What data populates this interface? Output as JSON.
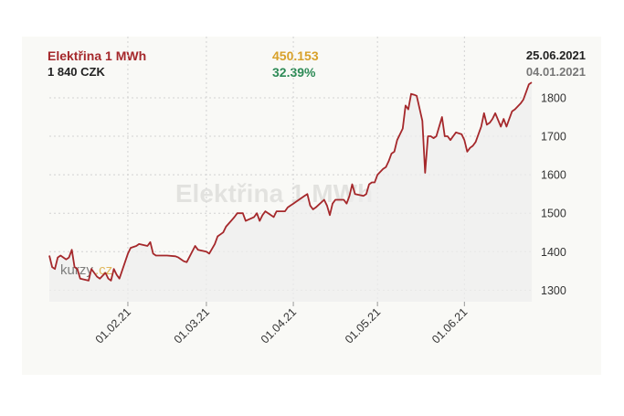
{
  "header": {
    "title": "Elektřina 1 MWh",
    "price": "1 840 CZK",
    "change_abs": "450.153",
    "change_pct": "32.39%",
    "date_end": "25.06.2021",
    "date_start": "04.01.2021"
  },
  "watermark": {
    "text": "Elektřina 1 MWh",
    "logo_text_a": "kurzy",
    "logo_text_b": ".cz"
  },
  "colors": {
    "title": "#a5282b",
    "line": "#a5282b",
    "change_abs": "#d8a12a",
    "change_pct": "#2e8b57",
    "text_dark": "#222222",
    "text_grey": "#777777",
    "fill": "#eeeeee"
  },
  "chart_data": {
    "type": "area",
    "title": "Elektřina 1 MWh",
    "xlabel": "",
    "ylabel": "",
    "ylim": [
      1270,
      1845
    ],
    "yticks": [
      1300,
      1400,
      1500,
      1600,
      1700,
      1800
    ],
    "x_start": "2021-01-04",
    "x_end": "2021-06-25",
    "xticks": [
      {
        "label": "01.02.21",
        "day": 28
      },
      {
        "label": "01.03.21",
        "day": 56
      },
      {
        "label": "01.04.21",
        "day": 87
      },
      {
        "label": "01.05.21",
        "day": 117
      },
      {
        "label": "01.06.21",
        "day": 148
      }
    ],
    "grid": true,
    "series": [
      {
        "name": "Elektřina 1 MWh",
        "x": [
          0,
          1,
          2,
          3,
          4,
          6,
          7,
          8,
          9,
          10,
          11,
          14,
          15,
          16,
          17,
          18,
          20,
          21,
          22,
          23,
          24,
          25,
          28,
          29,
          31,
          32,
          35,
          36,
          37,
          38,
          42,
          45,
          46,
          47,
          48,
          49,
          52,
          53,
          56,
          57,
          59,
          60,
          61,
          62,
          63,
          66,
          67,
          68,
          69,
          70,
          73,
          74,
          75,
          76,
          77,
          80,
          81,
          84,
          85,
          86,
          87,
          88,
          91,
          92,
          93,
          94,
          95,
          98,
          99,
          100,
          101,
          102,
          105,
          106,
          107,
          108,
          109,
          112,
          113,
          114,
          115,
          116,
          117,
          119,
          120,
          121,
          122,
          123,
          124,
          126,
          127,
          128,
          129,
          130,
          131,
          133,
          134,
          135,
          136,
          137,
          138,
          140,
          141,
          142,
          143,
          144,
          145,
          147,
          148,
          149,
          150,
          151,
          152,
          154,
          155,
          156,
          157,
          158,
          159,
          161,
          162,
          163,
          164,
          165,
          166,
          168,
          169,
          170,
          171,
          172,
          172
        ],
        "values": [
          1390,
          1360,
          1355,
          1385,
          1390,
          1380,
          1385,
          1405,
          1360,
          1355,
          1330,
          1325,
          1355,
          1345,
          1335,
          1330,
          1345,
          1330,
          1325,
          1355,
          1340,
          1330,
          1395,
          1410,
          1415,
          1420,
          1415,
          1425,
          1395,
          1390,
          1390,
          1388,
          1385,
          1380,
          1375,
          1373,
          1415,
          1405,
          1400,
          1395,
          1420,
          1440,
          1445,
          1450,
          1465,
          1490,
          1500,
          1500,
          1500,
          1480,
          1490,
          1500,
          1480,
          1495,
          1505,
          1490,
          1505,
          1505,
          1515,
          1520,
          1525,
          1530,
          1545,
          1550,
          1520,
          1510,
          1515,
          1535,
          1520,
          1495,
          1525,
          1535,
          1535,
          1525,
          1545,
          1575,
          1550,
          1545,
          1550,
          1575,
          1580,
          1580,
          1600,
          1615,
          1620,
          1635,
          1655,
          1660,
          1690,
          1720,
          1780,
          1770,
          1810,
          1808,
          1805,
          1740,
          1605,
          1700,
          1700,
          1695,
          1700,
          1750,
          1700,
          1700,
          1690,
          1700,
          1710,
          1705,
          1690,
          1660,
          1670,
          1675,
          1685,
          1725,
          1760,
          1730,
          1735,
          1745,
          1760,
          1725,
          1745,
          1725,
          1745,
          1765,
          1770,
          1785,
          1795,
          1815,
          1835,
          1840,
          1840
        ]
      }
    ]
  }
}
